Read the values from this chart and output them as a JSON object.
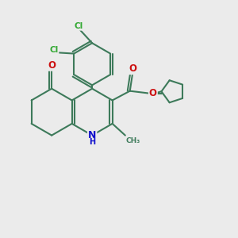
{
  "bg_color": "#ebebeb",
  "bond_color": "#3d7a5a",
  "bond_width": 1.5,
  "atom_colors": {
    "Cl": "#32a832",
    "O": "#cc1111",
    "N": "#1111cc",
    "C": "#3d7a5a"
  },
  "font_size_atom": 8.5,
  "font_size_small": 7.0,
  "fig_size": [
    3.0,
    3.0
  ],
  "dpi": 100
}
